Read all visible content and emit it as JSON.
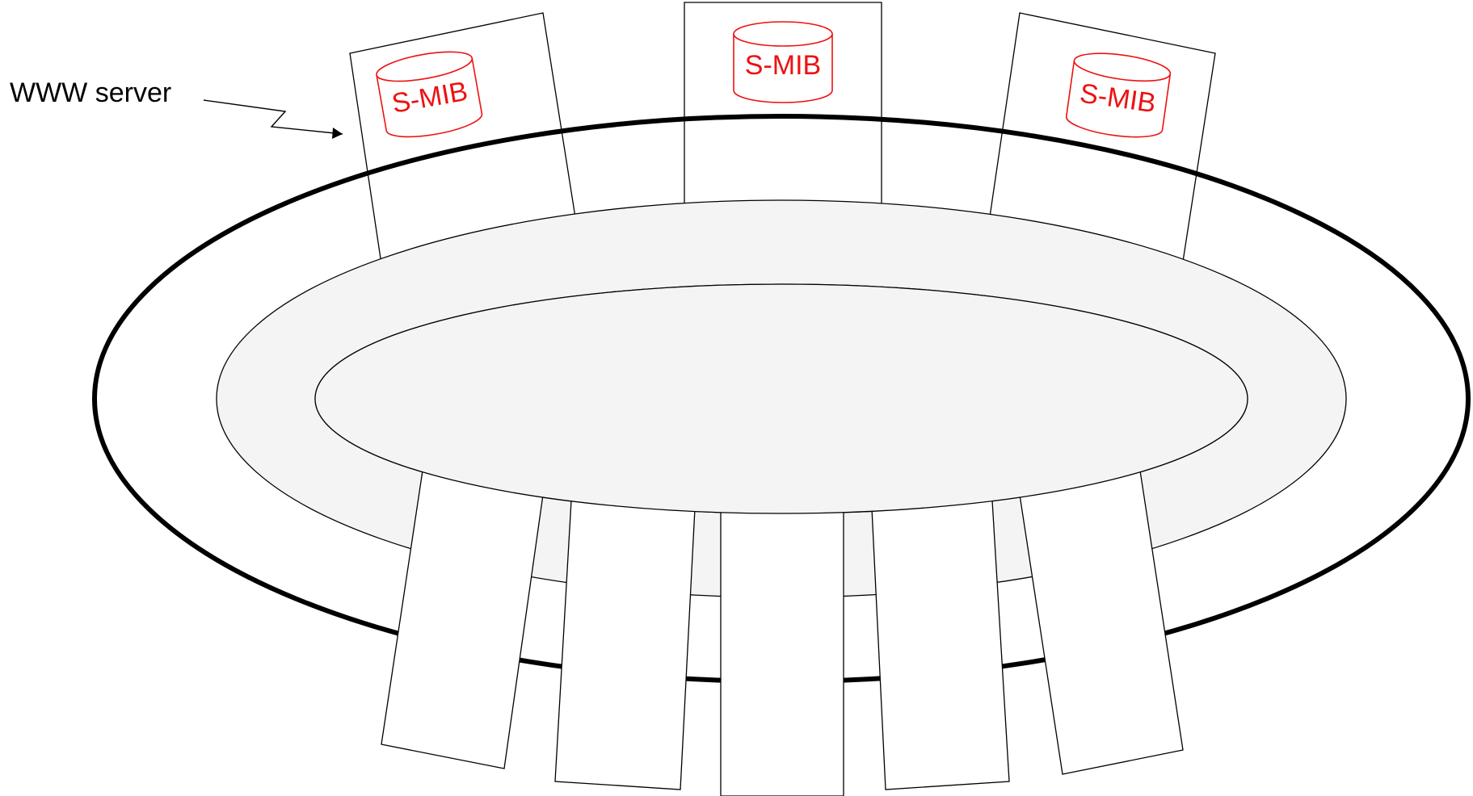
{
  "diagram": {
    "callout_label": "WWW server",
    "database_label": "S-MIB",
    "colors": {
      "database": "#ee1111",
      "ring_fill": "#f4f4f4",
      "line": "#000000"
    }
  },
  "server_panels": [
    {
      "name": "top-left",
      "has_database": true,
      "database_label": "S-MIB"
    },
    {
      "name": "top-center",
      "has_database": true,
      "database_label": "S-MIB"
    },
    {
      "name": "top-right",
      "has_database": true,
      "database_label": "S-MIB"
    },
    {
      "name": "bottom-1",
      "has_database": false
    },
    {
      "name": "bottom-2",
      "has_database": false
    },
    {
      "name": "bottom-3",
      "has_database": false
    },
    {
      "name": "bottom-4",
      "has_database": false
    },
    {
      "name": "bottom-5",
      "has_database": false
    }
  ]
}
